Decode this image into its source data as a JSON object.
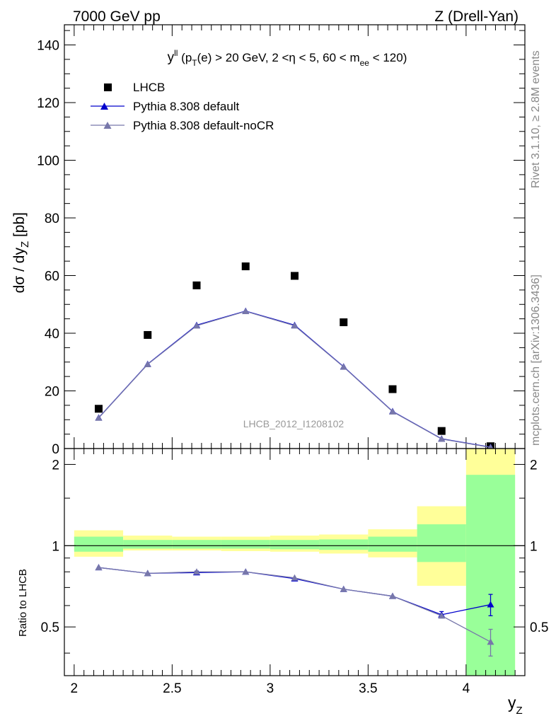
{
  "header": {
    "left": "7000 GeV pp",
    "right": "Z (Drell-Yan)"
  },
  "side_labels": {
    "rivet": "Rivet 3.1.10, ≥ 2.8M events",
    "mcplots": "mcplots.cern.ch [arXiv:1306.3436]"
  },
  "plot_title": {
    "y": "y",
    "y_sup": "ll",
    "open": " (p",
    "pt_sub": "T",
    "mid": "(e) > 20 GeV, 2 <η < 5, 60 < m",
    "m_sub": "ee",
    "close": " < 120)"
  },
  "watermark": "LHCB_2012_I1208102",
  "legend": {
    "data": "LHCB",
    "mc1": "Pythia 8.308 default",
    "mc2": "Pythia 8.308 default-noCR"
  },
  "colors": {
    "data": "#000000",
    "mc1": "#0000cc",
    "mc2": "#7777aa",
    "band_inner": "#99ff99",
    "band_outer": "#ffff99"
  },
  "main_ylabel": {
    "main": "dσ / dy",
    "sub": "Z",
    "unit": " [pb]"
  },
  "ratio_ylabel": "Ratio to LHCB",
  "xlabel": {
    "main": "y",
    "sub": "Z"
  },
  "chart_data": [
    {
      "type": "scatter",
      "xlim": [
        1.95,
        4.3
      ],
      "ylim": [
        0,
        147
      ],
      "x_ticks": [
        2,
        2.5,
        3,
        3.5,
        4
      ],
      "x_tick_labels": [
        "2",
        "2.5",
        "3",
        "3.5",
        "4"
      ],
      "y_ticks": [
        0,
        20,
        40,
        60,
        80,
        100,
        120,
        140
      ],
      "y_tick_labels": [
        "0",
        "20",
        "40",
        "60",
        "80",
        "100",
        "120",
        "140"
      ],
      "series": [
        {
          "name": "LHCB",
          "x": [
            2.125,
            2.375,
            2.625,
            2.875,
            3.125,
            3.375,
            3.625,
            3.875,
            4.125
          ],
          "values": [
            13.8,
            39.4,
            56.6,
            63.2,
            59.9,
            43.8,
            20.6,
            6.1,
            0.8
          ]
        },
        {
          "name": "Pythia 8.308 default",
          "x": [
            2.125,
            2.375,
            2.625,
            2.875,
            3.125,
            3.375,
            3.625,
            3.875,
            4.125
          ],
          "values": [
            10.7,
            29.3,
            42.8,
            47.7,
            42.8,
            28.4,
            12.9,
            3.4,
            0.5
          ]
        },
        {
          "name": "Pythia 8.308 default-noCR",
          "x": [
            2.125,
            2.375,
            2.625,
            2.875,
            3.125,
            3.375,
            3.625,
            3.875,
            4.125
          ],
          "values": [
            10.6,
            29.2,
            42.6,
            47.6,
            42.6,
            28.3,
            12.8,
            3.3,
            0.4
          ]
        }
      ]
    },
    {
      "type": "line",
      "xlim": [
        1.95,
        4.3
      ],
      "ylim": [
        0.33,
        2.29
      ],
      "y_scale": "log",
      "y_ticks": [
        0.5,
        1,
        2
      ],
      "y_tick_labels": [
        "0.5",
        "1",
        "2"
      ],
      "bands": {
        "edges": [
          2.0,
          2.25,
          2.5,
          2.75,
          3.0,
          3.25,
          3.5,
          3.75,
          4.0,
          4.25
        ],
        "inner_lo": [
          0.95,
          0.975,
          0.975,
          0.975,
          0.97,
          0.965,
          0.95,
          0.87,
          0.0
        ],
        "inner_hi": [
          1.08,
          1.05,
          1.05,
          1.05,
          1.05,
          1.055,
          1.08,
          1.2,
          1.83
        ],
        "outer_lo": [
          0.91,
          0.96,
          0.96,
          0.955,
          0.95,
          0.935,
          0.905,
          0.71,
          0.0
        ],
        "outer_hi": [
          1.14,
          1.09,
          1.08,
          1.08,
          1.09,
          1.1,
          1.15,
          1.4,
          2.5
        ]
      },
      "series": [
        {
          "name": "Pythia 8.308 default",
          "x": [
            2.125,
            2.375,
            2.625,
            2.875,
            3.125,
            3.375,
            3.625,
            3.875,
            4.125
          ],
          "values": [
            0.83,
            0.79,
            0.795,
            0.8,
            0.755,
            0.69,
            0.65,
            0.555,
            0.605
          ],
          "errors": [
            0,
            0,
            0.01,
            0,
            0,
            0,
            0,
            0.015,
            0.055
          ]
        },
        {
          "name": "Pythia 8.308 default-noCR",
          "x": [
            2.125,
            2.375,
            2.625,
            2.875,
            3.125,
            3.375,
            3.625,
            3.875,
            4.125
          ],
          "values": [
            0.83,
            0.79,
            0.8,
            0.8,
            0.76,
            0.69,
            0.65,
            0.55,
            0.44
          ],
          "errors": [
            0,
            0,
            0,
            0,
            0,
            0,
            0,
            0,
            0.05
          ]
        }
      ]
    }
  ]
}
